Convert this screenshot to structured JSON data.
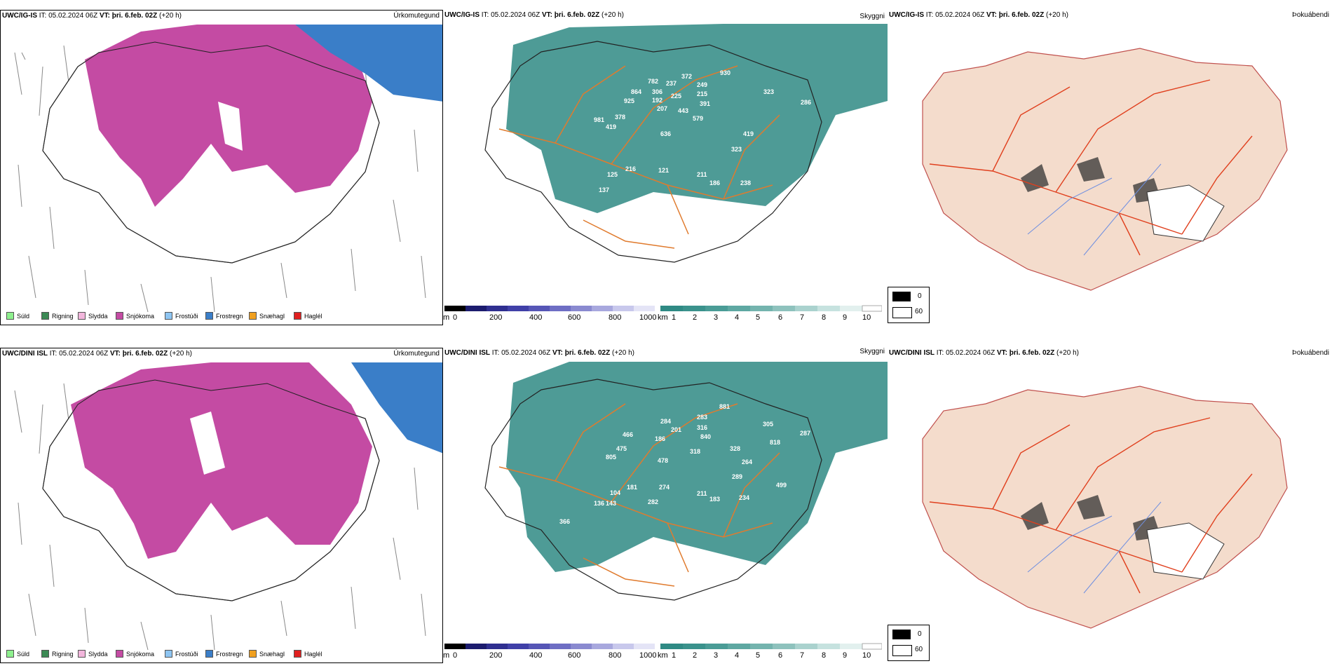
{
  "colors": {
    "snow": "#c44ba3",
    "freezing_rain": "#3a7ec8",
    "cloud": "#2f8a84",
    "elevation": "#4a3fa8",
    "roads": "#e07b2e",
    "land": "#f4dccc"
  },
  "rows": [
    {
      "precip": {
        "model": "UWC/IG-IS",
        "it_label": "IT:",
        "it_value": "05.02.2024 06Z",
        "vt_label": "VT:",
        "vt_value": "þri. 6.feb. 02Z",
        "lead": "(+20 h)",
        "field": "Úrkomutegund"
      },
      "cloud": {
        "model": "UWC/IG-IS",
        "it_label": "IT:",
        "it_value": "05.02.2024 06Z",
        "vt_label": "VT:",
        "vt_value": "þri. 6.feb. 02Z",
        "lead": "(+20 h)",
        "field": "Skyggni",
        "labels": [
          "782",
          "372",
          "930",
          "237",
          "249",
          "864",
          "306",
          "225",
          "215",
          "323",
          "925",
          "192",
          "391",
          "207",
          "443",
          "286",
          "378",
          "579",
          "981",
          "419",
          "636",
          "419",
          "323",
          "216",
          "121",
          "125",
          "211",
          "186",
          "238",
          "137"
        ]
      },
      "fog": {
        "model": "UWC/IG-IS",
        "it_label": "IT:",
        "it_value": "05.02.2024 06Z",
        "vt_label": "VT:",
        "vt_value": "þri. 6.feb. 02Z",
        "lead": "(+20 h)",
        "field": "Þokuábendi"
      }
    },
    {
      "precip": {
        "model": "UWC/DINI ISL",
        "it_label": "IT:",
        "it_value": "05.02.2024 06Z",
        "vt_label": "VT:",
        "vt_value": "þri. 6.feb. 02Z",
        "lead": "(+20 h)",
        "field": "Úrkomutegund"
      },
      "cloud": {
        "model": "UWC/DINI ISL",
        "it_label": "IT:",
        "it_value": "05.02.2024 06Z",
        "vt_label": "VT:",
        "vt_value": "þri. 6.feb. 02Z",
        "lead": "(+20 h)",
        "field": "Skyggni",
        "labels": [
          "284",
          "283",
          "881",
          "201",
          "316",
          "305",
          "466",
          "186",
          "840",
          "287",
          "475",
          "818",
          "805",
          "318",
          "328",
          "478",
          "264",
          "289",
          "499",
          "181",
          "274",
          "104",
          "282",
          "211",
          "183",
          "234",
          "136",
          "143",
          "366"
        ]
      },
      "fog": {
        "model": "UWC/DINI ISL",
        "it_label": "IT:",
        "it_value": "05.02.2024 06Z",
        "vt_label": "VT:",
        "vt_value": "þri. 6.feb. 02Z",
        "lead": "(+20 h)",
        "field": "Þokuábendi"
      }
    }
  ],
  "precip_legend": [
    {
      "label": "Súld",
      "color": "#8ef08e"
    },
    {
      "label": "Rigning",
      "color": "#3c8a55"
    },
    {
      "label": "Slydda",
      "color": "#f2b6dc"
    },
    {
      "label": "Snjókoma",
      "color": "#c44ba3"
    },
    {
      "label": "Frostúði",
      "color": "#8ec5f2"
    },
    {
      "label": "Frostregn",
      "color": "#3a7ec8"
    },
    {
      "label": "Snæhagl",
      "color": "#f0a020"
    },
    {
      "label": "Haglél",
      "color": "#e02020"
    }
  ],
  "elev_scale": {
    "unit": "m",
    "ticks": [
      "0",
      "200",
      "400",
      "600",
      "800",
      "1000"
    ]
  },
  "cloud_scale": {
    "unit": "km",
    "ticks": [
      "1",
      "2",
      "3",
      "4",
      "5",
      "6",
      "7",
      "8",
      "9",
      "10"
    ]
  },
  "fog_scale": {
    "ticks": [
      "0",
      "60"
    ]
  }
}
